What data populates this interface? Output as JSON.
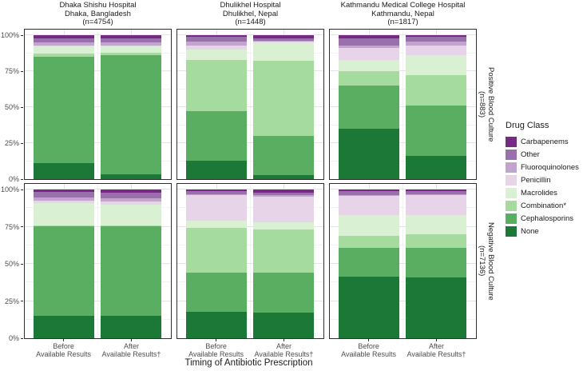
{
  "figure": {
    "x_axis_title": "Timing of Antibiotic Prescription",
    "x_tick_labels": [
      [
        "Before",
        "Available Results"
      ],
      [
        "After",
        "Available Results†"
      ]
    ]
  },
  "facets": {
    "columns": [
      {
        "lines": [
          "Dhaka Shishu Hospital",
          "Dhaka, Bangladesh",
          "(n=4754)"
        ]
      },
      {
        "lines": [
          "Dhulikhel Hospital",
          "Dhulikhel, Nepal",
          "(n=1448)"
        ]
      },
      {
        "lines": [
          "Kathmandu Medical College Hospital",
          "Kathmandu, Nepal",
          "(n=1817)"
        ]
      }
    ],
    "rows": [
      {
        "lines": [
          "Positive Blood Culture",
          "(n=883)"
        ]
      },
      {
        "lines": [
          "Negative Blood Culture",
          "(n=7136)"
        ]
      }
    ]
  },
  "legend": {
    "title": "Drug Class"
  },
  "chart_data": {
    "type": "bar",
    "subtype": "100pct_stacked_bar_faceted",
    "x_axis_title": "Timing of Antibiotic Prescription",
    "x_categories": [
      "Before Available Results",
      "After Available Results†"
    ],
    "y_axis": {
      "ticks": [
        "0%",
        "25%",
        "50%",
        "75%",
        "100%"
      ],
      "lim": [
        0,
        100
      ],
      "grid": "major_and_minor"
    },
    "legend_position": "right",
    "stack_classes_top_to_bottom": [
      "Carbapenems",
      "Other",
      "Fluoroquinolones",
      "Penicillin",
      "Macrolides",
      "Combination*",
      "Cephalosporins",
      "None"
    ],
    "colors": {
      "Carbapenems": "#762a83",
      "Other": "#9970ab",
      "Fluoroquinolones": "#c2a5cf",
      "Penicillin": "#e7d4e8",
      "Macrolides": "#d9f0d3",
      "Combination*": "#a6dba0",
      "Cephalosporins": "#5aae61",
      "None": "#1b7837"
    },
    "panels": [
      {
        "facet_col": "Dhaka Shishu Hospital (n=4754)",
        "facet_row": "Positive Blood Culture (n=883)",
        "bars": [
          {
            "x": "Before Available Results",
            "segments_pct": [
              2,
              3,
              2,
              1,
              5,
              2,
              74,
              11
            ]
          },
          {
            "x": "After Available Results†",
            "segments_pct": [
              2,
              3,
              2,
              1,
              4,
              2,
              82.5,
              3.5
            ]
          }
        ]
      },
      {
        "facet_col": "Dhulikhel Hospital (n=1448)",
        "facet_row": "Positive Blood Culture (n=883)",
        "bars": [
          {
            "x": "Before Available Results",
            "segments_pct": [
              1,
              3.5,
              2.5,
              3,
              7,
              36,
              34,
              13
            ]
          },
          {
            "x": "After Available Results†",
            "segments_pct": [
              2,
              2,
              0.5,
              0.5,
              13,
              52,
              27,
              3
            ]
          }
        ]
      },
      {
        "facet_col": "Kathmandu Medical College Hospital (n=1817)",
        "facet_row": "Positive Blood Culture (n=883)",
        "bars": [
          {
            "x": "Before Available Results",
            "segments_pct": [
              2,
              5,
              2,
              8,
              8,
              10,
              30,
              35
            ]
          },
          {
            "x": "After Available Results†",
            "segments_pct": [
              1,
              3.5,
              2.5,
              7,
              14,
              21,
              35,
              16
            ]
          }
        ]
      },
      {
        "facet_col": "Dhaka Shishu Hospital (n=4754)",
        "facet_row": "Negative Blood Culture (n=7136)",
        "bars": [
          {
            "x": "Before Available Results",
            "segments_pct": [
              1.5,
              4,
              2,
              1.5,
              15,
              1,
              60,
              15
            ]
          },
          {
            "x": "After Available Results†",
            "segments_pct": [
              2,
              4,
              2,
              2,
              14,
              1,
              60,
              15
            ]
          }
        ]
      },
      {
        "facet_col": "Dhulikhel Hospital (n=1448)",
        "facet_row": "Negative Blood Culture (n=7136)",
        "bars": [
          {
            "x": "Before Available Results",
            "segments_pct": [
              1,
              2,
              1,
              17,
              5,
              30,
              26,
              18
            ]
          },
          {
            "x": "After Available Results†",
            "segments_pct": [
              2,
              2,
              1,
              17,
              5,
              29,
              27,
              17
            ]
          }
        ]
      },
      {
        "facet_col": "Kathmandu Medical College Hospital (n=1817)",
        "facet_row": "Negative Blood Culture (n=7136)",
        "bars": [
          {
            "x": "Before Available Results",
            "segments_pct": [
              1,
              2.5,
              1,
              12.5,
              14,
              8,
              19.5,
              41.5
            ]
          },
          {
            "x": "After Available Results†",
            "segments_pct": [
              1,
              2,
              1,
              13,
              13,
              9,
              20,
              41
            ]
          }
        ]
      }
    ]
  }
}
